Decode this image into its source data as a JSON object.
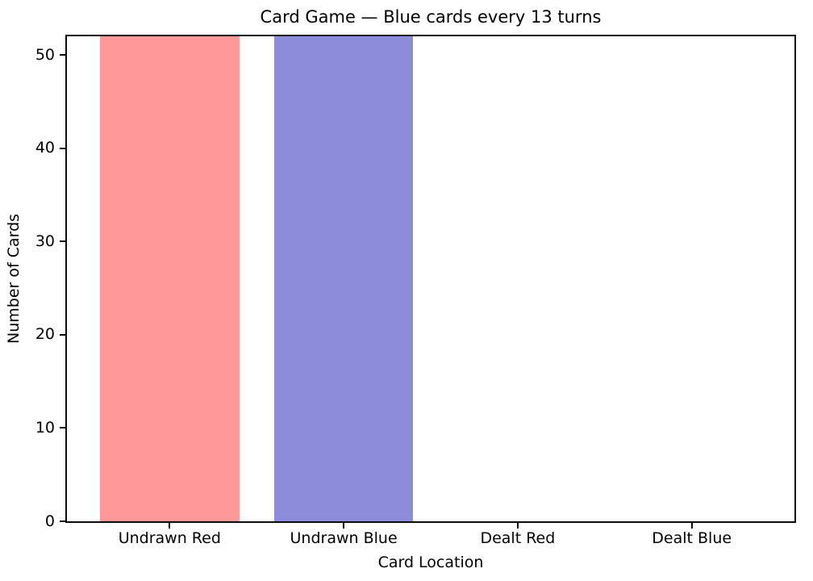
{
  "chart_data": {
    "type": "bar",
    "title": "Card Game — Blue cards every 13 turns",
    "xlabel": "Card Location",
    "ylabel": "Number of Cards",
    "categories": [
      "Undrawn Red",
      "Undrawn Blue",
      "Dealt Red",
      "Dealt Blue"
    ],
    "values": [
      52,
      52,
      0,
      0
    ],
    "bar_colors": [
      "#ff9999",
      "#8c8cdb",
      "#ff9999",
      "#8c8cdb"
    ],
    "ylim": [
      0,
      52
    ],
    "yticks": [
      0,
      10,
      20,
      30,
      40,
      50
    ],
    "grid": false,
    "legend_position": "none",
    "layout_hints": {
      "bar_width_units": 0.8,
      "x_margin_fraction": 0.05,
      "spine_color": "#0d0d0d",
      "text_color": "#000000",
      "background_color": "#ffffff"
    }
  }
}
